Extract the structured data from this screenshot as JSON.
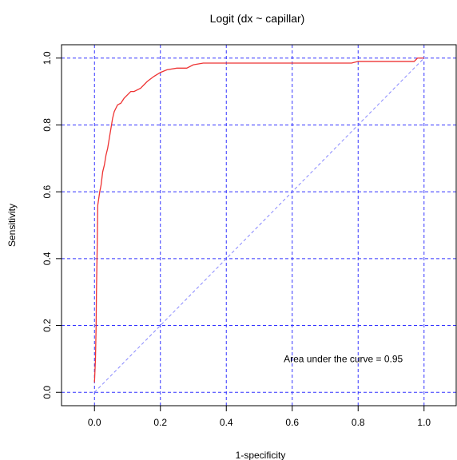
{
  "chart_data": {
    "type": "line",
    "title": "Logit (dx ~ capillar)",
    "xlabel": "1-specificity",
    "ylabel": "Sensitivity",
    "xlim": [
      -0.1,
      1.1
    ],
    "ylim": [
      -0.04,
      1.04
    ],
    "x_ticks": [
      0.0,
      0.2,
      0.4,
      0.6,
      0.8,
      1.0
    ],
    "y_ticks": [
      0.0,
      0.2,
      0.4,
      0.6,
      0.8,
      1.0
    ],
    "x_tick_labels": [
      "0.0",
      "0.2",
      "0.4",
      "0.6",
      "0.8",
      "1.0"
    ],
    "y_tick_labels": [
      "0.0",
      "0.2",
      "0.4",
      "0.6",
      "0.8",
      "1.0"
    ],
    "grid": true,
    "annotation": "Area under the curve = 0.95",
    "annotation_position": {
      "x": 0.755,
      "y": 0.1
    },
    "series": [
      {
        "color": "#ee3333",
        "x": [
          0,
          0.003,
          0.005,
          0.006,
          0.008,
          0.01,
          0.013,
          0.016,
          0.02,
          0.025,
          0.03,
          0.035,
          0.04,
          0.045,
          0.05,
          0.055,
          0.06,
          0.065,
          0.07,
          0.08,
          0.09,
          0.1,
          0.11,
          0.12,
          0.14,
          0.16,
          0.18,
          0.2,
          0.22,
          0.25,
          0.28,
          0.3,
          0.33,
          0.36,
          0.4,
          0.45,
          0.5,
          0.6,
          0.7,
          0.78,
          0.8,
          0.9,
          0.97,
          0.98,
          1.0
        ],
        "y": [
          0.03,
          0.1,
          0.2,
          0.3,
          0.42,
          0.56,
          0.58,
          0.6,
          0.62,
          0.66,
          0.68,
          0.71,
          0.73,
          0.76,
          0.79,
          0.82,
          0.84,
          0.85,
          0.86,
          0.865,
          0.88,
          0.89,
          0.9,
          0.9,
          0.91,
          0.93,
          0.945,
          0.957,
          0.965,
          0.97,
          0.97,
          0.98,
          0.985,
          0.985,
          0.985,
          0.985,
          0.985,
          0.985,
          0.985,
          0.985,
          0.99,
          0.99,
          0.99,
          1.0,
          1.0
        ]
      },
      {
        "color": "#8888ff",
        "x": [
          0,
          1
        ],
        "y": [
          0,
          1
        ]
      }
    ]
  }
}
